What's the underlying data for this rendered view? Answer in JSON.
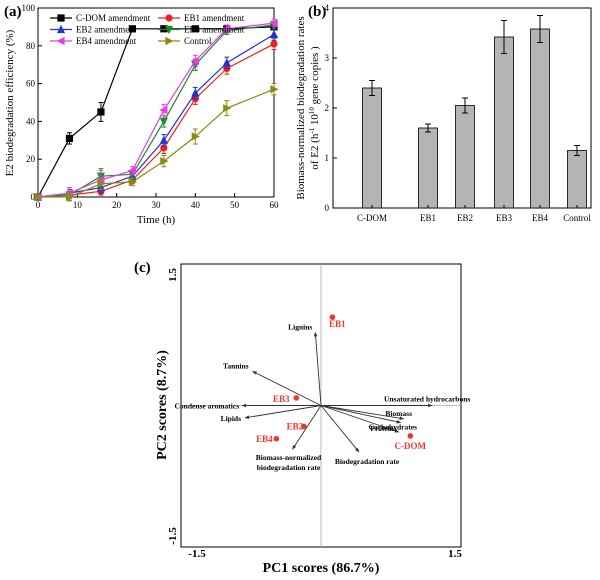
{
  "chart_data": [
    {
      "panel": "(a)",
      "type": "line",
      "xlabel": "Time (h)",
      "ylabel": "E2 biodegradation efficiency (%)",
      "xlim": [
        0,
        60
      ],
      "ylim": [
        0,
        100
      ],
      "x_ticks": [
        "0",
        "10",
        "20",
        "30",
        "40",
        "50",
        "60"
      ],
      "y_ticks": [
        "0",
        "20",
        "40",
        "60",
        "80",
        "100"
      ],
      "x": [
        0,
        8,
        16,
        24,
        32,
        40,
        48,
        60
      ],
      "legend_position": "top",
      "series": [
        {
          "name": "C-DOM amendment",
          "color": "#000000",
          "marker": "square",
          "x": [
            0,
            8,
            16,
            24,
            32,
            40,
            48,
            60
          ],
          "values": [
            0,
            31,
            45,
            89,
            89,
            89,
            89,
            90
          ],
          "errors": [
            0,
            3,
            5,
            1,
            1,
            1,
            1,
            1
          ]
        },
        {
          "name": "EB1 amendment",
          "color": "#e8221e",
          "marker": "circle",
          "x": [
            0,
            8,
            16,
            24,
            32,
            40,
            48,
            60
          ],
          "values": [
            0,
            1,
            3,
            9,
            26,
            52,
            68,
            81
          ],
          "errors": [
            0,
            2,
            2,
            2,
            3,
            3,
            3,
            3
          ]
        },
        {
          "name": "EB2 amendment",
          "color": "#2233cc",
          "marker": "triangle-up",
          "x": [
            0,
            8,
            16,
            24,
            32,
            40,
            48,
            60
          ],
          "values": [
            0,
            2,
            5,
            11,
            30,
            55,
            71,
            86
          ],
          "errors": [
            0,
            2,
            3,
            2,
            3,
            3,
            3,
            3
          ]
        },
        {
          "name": "EB3 amendment",
          "color": "#1a8a2a",
          "marker": "triangle-down",
          "x": [
            0,
            8,
            16,
            24,
            32,
            40,
            48,
            60
          ],
          "values": [
            0,
            1,
            11,
            12,
            40,
            70,
            88,
            91
          ],
          "errors": [
            0,
            3,
            4,
            2,
            3,
            3,
            2,
            2
          ]
        },
        {
          "name": "EB4 amendment",
          "color": "#e040e0",
          "marker": "triangle-left",
          "x": [
            0,
            8,
            16,
            24,
            32,
            40,
            48,
            60
          ],
          "values": [
            0,
            2,
            9,
            14,
            46,
            72,
            89,
            92
          ],
          "errors": [
            0,
            3,
            5,
            2,
            3,
            3,
            2,
            2
          ]
        },
        {
          "name": "Control",
          "color": "#8a8a10",
          "marker": "triangle-right",
          "x": [
            0,
            8,
            16,
            24,
            32,
            40,
            48,
            60
          ],
          "values": [
            0,
            0,
            7,
            8,
            19,
            32,
            47,
            57
          ],
          "errors": [
            0,
            2,
            3,
            2,
            3,
            4,
            4,
            3
          ]
        }
      ]
    },
    {
      "panel": "(b)",
      "type": "bar",
      "ylabel_line1": "Biomass-normalized biodegradation rates",
      "ylabel_line2_pre": "of E2  (h",
      "ylabel_sup1": "-1",
      "ylabel_mid": " 10",
      "ylabel_sup2": "10",
      "ylabel_post": " gene copies )",
      "ylim": [
        0,
        4
      ],
      "y_ticks": [
        "0",
        "1",
        "2",
        "3",
        "4"
      ],
      "categories": [
        "C-DOM",
        "EB1",
        "EB2",
        "EB3",
        "EB4",
        "Control"
      ],
      "values": [
        2.4,
        1.6,
        2.05,
        3.42,
        3.58,
        1.15
      ],
      "errors": [
        0.15,
        0.08,
        0.15,
        0.33,
        0.27,
        0.1
      ],
      "bar_color": "#b4b4b4"
    },
    {
      "panel": "(c)",
      "type": "scatter",
      "xlabel": "PC1 scores (86.7%)",
      "ylabel": "PC2 scores (8.7%)",
      "xlim": [
        -1.5,
        1.5
      ],
      "ylim": [
        -1.5,
        1.5
      ],
      "x_ticks": [
        "-1.5",
        "1.5"
      ],
      "y_ticks": [
        "1.5",
        "-1.5"
      ],
      "scores": [
        {
          "name": "EB1",
          "x": 0.12,
          "y": 0.93
        },
        {
          "name": "EB3",
          "x": -0.26,
          "y": 0.08
        },
        {
          "name": "EB2",
          "x": -0.18,
          "y": -0.22
        },
        {
          "name": "EB4",
          "x": -0.47,
          "y": -0.35
        },
        {
          "name": "C-DOM",
          "x": 0.94,
          "y": -0.32
        }
      ],
      "loadings": [
        {
          "name": "Lignins",
          "x": -0.06,
          "y": 0.77
        },
        {
          "name": "Tannins",
          "x": -0.72,
          "y": 0.36
        },
        {
          "name": "Condense aromatics",
          "x": -0.83,
          "y": 0.0
        },
        {
          "name": "Lipids",
          "x": -0.8,
          "y": -0.13
        },
        {
          "name": "Unsaturated hydrocarbons",
          "x": 1.17,
          "y": 0.0
        },
        {
          "name": "Biomass",
          "x": 0.87,
          "y": -0.14
        },
        {
          "name": "Carbohydrates",
          "x": 0.84,
          "y": -0.18
        },
        {
          "name": "Proteins",
          "x": 0.82,
          "y": -0.28
        },
        {
          "name": "Biodegradation rate",
          "x": 0.4,
          "y": -0.49
        },
        {
          "name": "Biomass-normalized biodegradation rate",
          "x": -0.3,
          "y": -0.46
        }
      ]
    }
  ]
}
